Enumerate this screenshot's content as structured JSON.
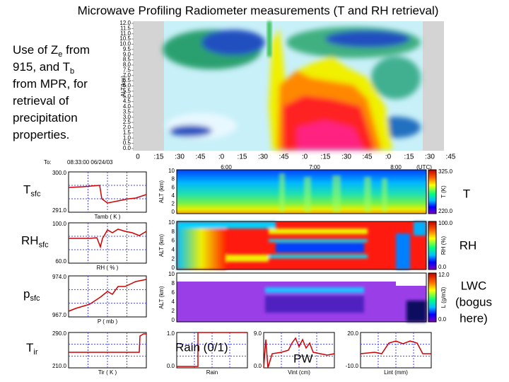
{
  "title": "Microwave Profiling Radiometer measurements (T and RH retrieval)",
  "intro_lines": [
    [
      "Use of Z",
      "e",
      " from"
    ],
    [
      "915, and T",
      "b"
    ],
    [
      "from MPR, for"
    ],
    [
      "retrieval of"
    ],
    [
      "precipitation"
    ],
    [
      "properties."
    ]
  ],
  "radar": {
    "y_label": "ALT(km)",
    "yticks": [
      "0.0",
      "0.5",
      "1.0",
      "1.5",
      "2.0",
      "2.5",
      "3.0",
      "3.5",
      "4.0",
      "4.5",
      "5.0",
      "5.5",
      "6.0",
      "6.5",
      "7.0",
      "7.5",
      "8.0",
      "8.5",
      "9.0",
      "9.5",
      "10.0",
      "10.5",
      "11.0",
      "11.5",
      "12.0"
    ],
    "xticks": [
      "0",
      ":15",
      ":30",
      ":45",
      ":0",
      ":15",
      ":30",
      ":45",
      ":0",
      ":15",
      ":30",
      ":45",
      ":0",
      ":15",
      ":30",
      ":45"
    ]
  },
  "header": {
    "to_label": "To:",
    "time": "08:33:00 06/24/03",
    "hours": [
      "6:00",
      "7:00",
      "8:00"
    ],
    "utc": "(UTC)"
  },
  "surface_panels": [
    {
      "label": "T",
      "label_sub": "sfc",
      "ymax": "300.0",
      "ymin": "291.0",
      "xlabel": "Tamb ( K )"
    },
    {
      "label": "RH",
      "label_sub": "sfc",
      "ymax": "100.0",
      "ymin": "60.0",
      "xlabel": "RH ( % )"
    },
    {
      "label": "p",
      "label_sub": "sfc",
      "ymax": "974.0",
      "ymin": "967.0",
      "xlabel": "P ( mb )"
    },
    {
      "label": "T",
      "label_sub": "ir",
      "ymax": "290.0",
      "ymin": "210.0",
      "xlabel": "Tir ( K )"
    }
  ],
  "profile_panels": [
    {
      "ylabel": "ALT (km)",
      "yticks": [
        "0",
        "2",
        "4",
        "6",
        "8",
        "10"
      ],
      "cb_max": "325.0",
      "cb_min": "220.0",
      "cb_label": "T (K)",
      "label": [
        "T"
      ]
    },
    {
      "ylabel": "ALT (km)",
      "yticks": [
        "0",
        "2",
        "4",
        "6",
        "8",
        "10"
      ],
      "cb_max": "100.0",
      "cb_min": "0.0",
      "cb_label": "RH (%)",
      "label": [
        "RH"
      ]
    },
    {
      "ylabel": "ALT (km)",
      "yticks": [
        "0",
        "2",
        "4",
        "6",
        "8",
        "10"
      ],
      "cb_max": "12.0",
      "cb_min": "0.0",
      "cb_label": "L (g/m3)",
      "label": [
        "LWC",
        "(bogus",
        "here)"
      ]
    }
  ],
  "bottom_panels": [
    {
      "ymax": "1.0",
      "ymin": "0.0",
      "xlabel": "Rain",
      "note": "Rain (0/1)"
    },
    {
      "ymax": "9.0",
      "ymin": "0.0",
      "xlabel": "Vint (cm)",
      "note": "PW"
    },
    {
      "ymax": "20.0",
      "ymin": "-10.0",
      "xlabel": "Lint (mm)"
    }
  ]
}
